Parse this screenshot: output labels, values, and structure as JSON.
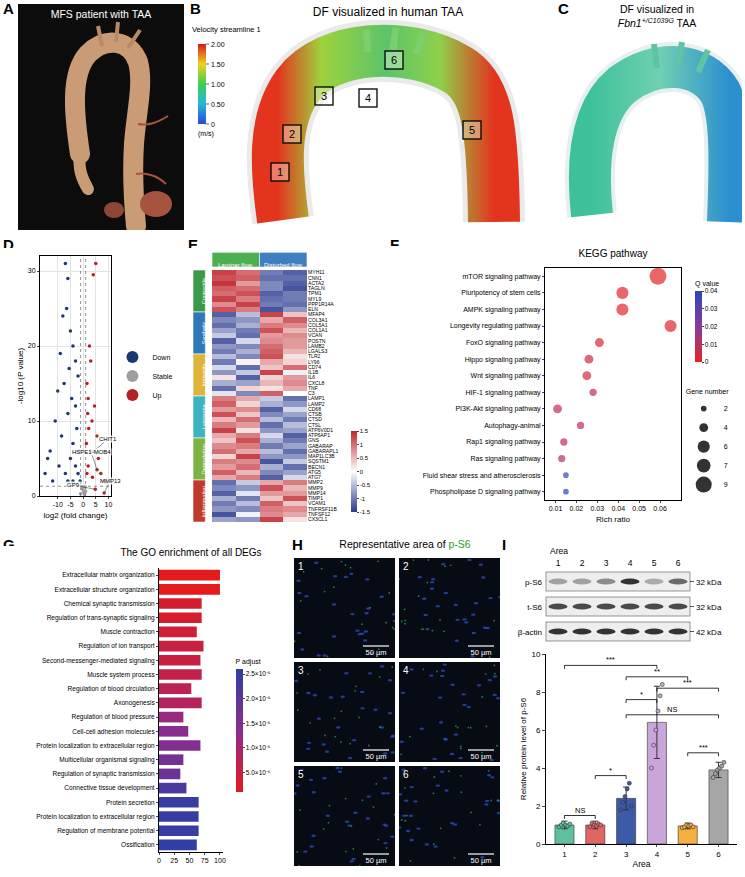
{
  "figure_panels": {
    "A": {
      "panel": "A",
      "title": "MFS patient with TAA"
    },
    "B": {
      "panel": "B",
      "title": "DF visualized in human TAA",
      "boxes": [
        "1",
        "2",
        "3",
        "4",
        "5",
        "6"
      ],
      "colorbar": {
        "title": "Velocity streamline 1",
        "range": [
          0,
          2
        ],
        "ticks": [
          0,
          {
            "value": 0.5,
            "label": "0.50"
          },
          {
            "value": 1,
            "label": "1.00"
          },
          {
            "value": 1.5,
            "label": "1.50"
          },
          {
            "value": 2,
            "label": "2.00"
          }
        ],
        "unit": "(m/s)"
      }
    },
    "C": {
      "panel": "C",
      "title_prefix": "DF visualized in ",
      "title_gene": "Fbn1",
      "title_sup": "+/C1039G",
      "title_suffix": " TAA"
    },
    "H": {
      "panel": "H",
      "title": "Representative area of p-S6",
      "highlight": "p-S6",
      "images": [
        "1",
        "2",
        "3",
        "4",
        "5",
        "6"
      ],
      "scale_bar": "50 µm"
    },
    "I_blot": {
      "panel": "I",
      "header": "Area",
      "lanes": [
        "1",
        "2",
        "3",
        "4",
        "5",
        "6"
      ],
      "rows": [
        {
          "name": "p-S6",
          "size": "32 kDa",
          "intensity": [
            0.35,
            0.35,
            0.45,
            0.85,
            0.3,
            0.6
          ]
        },
        {
          "name": "t-S6",
          "size": "32 kDa",
          "intensity": [
            0.75,
            0.75,
            0.75,
            0.75,
            0.75,
            0.75
          ]
        },
        {
          "name": "β-actin",
          "size": "42 kDa",
          "intensity": [
            0.85,
            0.85,
            0.85,
            0.85,
            0.85,
            0.85
          ]
        }
      ]
    }
  },
  "chart_data": [
    {
      "panel": "D",
      "type": "scatter",
      "xlabel": "log2 (fold change)",
      "ylabel": "-log10 (P value)",
      "xlim": [
        -17,
        11
      ],
      "xticks": [
        -10,
        -5,
        0,
        5,
        10
      ],
      "ylim": [
        0,
        32
      ],
      "yticks": [
        0,
        10,
        20,
        30
      ],
      "grid": true,
      "legend": "right",
      "thresholds": {
        "x": [
          -1,
          1
        ],
        "y": [
          1.3
        ]
      },
      "series": [
        {
          "name": "Down",
          "color": "#1b3b6f",
          "x": [
            -7,
            -6,
            -6.5,
            -8,
            -5,
            -4,
            -9,
            -3,
            -5.5,
            -2,
            -7.5,
            -10,
            -4.5,
            -3,
            -6,
            -11,
            -2.5,
            -8.5,
            -4,
            -13,
            -1.5,
            -5,
            -3,
            -9.5,
            -15,
            -7,
            -2,
            -12,
            -6,
            -4,
            -1.2,
            -14
          ],
          "values": [
            31,
            29,
            25,
            24,
            22,
            20,
            19,
            18,
            17,
            16,
            15,
            14,
            13,
            12,
            11,
            10,
            9,
            8,
            7,
            6,
            6,
            5,
            4,
            4,
            3,
            3,
            3,
            2,
            2,
            2,
            2,
            5
          ]
        },
        {
          "name": "Stable",
          "color": "#9e9e9e",
          "x": [
            -0.5,
            0.2,
            0.8,
            -1,
            0.5,
            0,
            -0.8,
            1
          ],
          "values": [
            1,
            0.5,
            1.2,
            0.3,
            0.2,
            0.8,
            1.3,
            0.6
          ]
        },
        {
          "name": "Up",
          "color": "#b22222",
          "x": [
            4,
            5,
            2.5,
            3,
            1.5,
            2,
            4.5,
            1.8,
            3.5,
            2.2,
            5.5,
            1.3,
            3,
            6,
            2,
            7,
            8,
            1.5,
            3.7,
            9,
            4.3,
            5.5,
            4.8,
            8.3
          ],
          "values": [
            29.5,
            31,
            20,
            18,
            15,
            13,
            12,
            11,
            10,
            9,
            8,
            7,
            6,
            5,
            4,
            3,
            2,
            3,
            2.5,
            1.8,
            6,
            3.5,
            0.9,
            0.4
          ]
        }
      ],
      "annotations": [
        {
          "text": "CHIT1",
          "x": 4.3,
          "y": 6
        },
        {
          "text": "HSPE1-MOB4",
          "x": 5.5,
          "y": 3.5
        },
        {
          "text": "GP9",
          "x": 4.8,
          "y": 0.9
        },
        {
          "text": "MMP13",
          "x": 8.3,
          "y": 0.4
        }
      ]
    },
    {
      "panel": "E",
      "type": "heatmap",
      "clim": [
        -1.5,
        1.5
      ],
      "cticks": [
        -1.5,
        -1,
        -0.5,
        0,
        0.5,
        1,
        1.5
      ],
      "column_groups": [
        {
          "name": "Laminar flow",
          "color": "#4caf50",
          "columns": 2
        },
        {
          "name": "Disturbed flow",
          "color": "#3f7fbf",
          "columns": 2
        }
      ],
      "row_groups": [
        {
          "name": "Contractile",
          "color": "#3a9a4a",
          "genes": [
            "MYH11",
            "CNN1",
            "ACTA2",
            "TAGLN",
            "TPM1",
            "MYL9",
            "PPP1R14A",
            "ELN"
          ],
          "cells": [
            [
              1.3,
              1.0,
              -1.0,
              -1.2
            ],
            [
              1.2,
              1.1,
              -1.1,
              -1.1
            ],
            [
              1.4,
              0.7,
              -0.9,
              -1.2
            ],
            [
              1.1,
              1.0,
              -0.9,
              -1.3
            ],
            [
              1.0,
              1.2,
              -1.2,
              -1.0
            ],
            [
              1.3,
              0.9,
              -1.1,
              -1.0
            ],
            [
              0.8,
              1.3,
              -1.0,
              -1.1
            ],
            [
              1.2,
              0.9,
              -1.3,
              -0.8
            ]
          ]
        },
        {
          "name": "Synthetic",
          "color": "#2f78b7",
          "genes": [
            "MFAP4",
            "COL3A1",
            "COL5A1",
            "COL1A1",
            "VCAN",
            "POSTN",
            "LAMB2",
            "LGALS3"
          ],
          "cells": [
            [
              -1.2,
              -0.5,
              1.3,
              0.4
            ],
            [
              -0.9,
              -0.8,
              0.6,
              1.1
            ],
            [
              -1.1,
              -0.6,
              0.9,
              0.8
            ],
            [
              -0.7,
              -1.0,
              1.2,
              0.5
            ],
            [
              -0.4,
              -1.1,
              0.7,
              0.8
            ],
            [
              -1.2,
              -0.3,
              0.8,
              0.7
            ],
            [
              -0.8,
              -0.9,
              1.0,
              0.7
            ],
            [
              -1.0,
              -0.6,
              1.1,
              0.5
            ]
          ]
        },
        {
          "name": "Immunity",
          "color": "#e0b43a",
          "genes": [
            "TLR2",
            "LY96",
            "CD74",
            "IL1B",
            "IL6",
            "CXCL8",
            "TNF",
            "C3"
          ],
          "cells": [
            [
              -0.5,
              -0.9,
              1.2,
              0.2
            ],
            [
              -1.0,
              0.1,
              0.6,
              0.3
            ],
            [
              -0.3,
              -1.1,
              0.4,
              1.0
            ],
            [
              -0.8,
              -0.4,
              1.3,
              -0.1
            ],
            [
              0.2,
              -1.2,
              0.3,
              0.7
            ],
            [
              -0.6,
              -0.7,
              0.5,
              0.8
            ],
            [
              -1.1,
              0.3,
              0.2,
              0.6
            ],
            [
              -0.2,
              -0.9,
              1.1,
              0.0
            ]
          ]
        },
        {
          "name": "Lysosome",
          "color": "#3bb3c3",
          "genes": [
            "LAMP1",
            "LAMP2",
            "CD68",
            "CTSB",
            "CTSD",
            "CTSL",
            "ATP6V0D1",
            "ATP6AP1"
          ],
          "cells": [
            [
              0.9,
              0.6,
              -0.4,
              -1.1
            ],
            [
              1.1,
              0.3,
              -0.6,
              -0.8
            ],
            [
              0.7,
              0.8,
              -1.2,
              -0.3
            ],
            [
              1.2,
              0.4,
              -0.9,
              -0.7
            ],
            [
              0.5,
              1.0,
              -0.5,
              -1.0
            ],
            [
              0.9,
              0.7,
              -1.1,
              -0.5
            ],
            [
              1.3,
              0.2,
              -0.8,
              -0.7
            ],
            [
              0.6,
              0.9,
              -0.3,
              -1.2
            ]
          ]
        },
        {
          "name": "Degradation",
          "color": "#7cb342",
          "genes": [
            "GNS",
            "GABARAP",
            "GABARAPL1",
            "MAP1LC3B",
            "SQSTM1",
            "BECN1",
            "ATG5",
            "ATG7"
          ],
          "cells": [
            [
              0.4,
              1.2,
              -0.6,
              -1.0
            ],
            [
              0.8,
              0.9,
              -1.0,
              -0.7
            ],
            [
              1.0,
              0.6,
              -0.5,
              -1.1
            ],
            [
              0.3,
              1.3,
              -0.8,
              -0.8
            ],
            [
              0.9,
              0.8,
              -1.3,
              -0.4
            ],
            [
              0.7,
              1.0,
              -0.6,
              -1.1
            ],
            [
              1.1,
              0.5,
              -0.9,
              -0.7
            ],
            [
              0.6,
              0.9,
              -1.2,
              -0.3
            ]
          ]
        },
        {
          "name": "Inflammation",
          "color": "#c0392b",
          "genes": [
            "MMP2",
            "MMP9",
            "MMP14",
            "TIMP1",
            "VCAM1",
            "TNFRSF11B",
            "TNFSF12",
            "CX3CL1"
          ],
          "cells": [
            [
              -1.1,
              -0.4,
              0.6,
              0.9
            ],
            [
              -0.9,
              -0.8,
              1.2,
              0.5
            ],
            [
              -1.2,
              -0.2,
              0.7,
              0.7
            ],
            [
              -0.6,
              -1.0,
              0.4,
              1.2
            ],
            [
              -1.0,
              -0.5,
              1.1,
              0.4
            ],
            [
              -0.8,
              -0.9,
              0.9,
              0.8
            ],
            [
              -1.3,
              -0.1,
              0.8,
              0.6
            ],
            [
              -0.7,
              -0.8,
              1.3,
              0.2
            ]
          ]
        }
      ]
    },
    {
      "panel": "F",
      "type": "scatter",
      "title": "KEGG pathway",
      "xlabel": "Rich ratio",
      "legend": "bottom right",
      "categories": [
        "mTOR signaling pathway",
        "Pluripotency of stem cells",
        "AMPK signaling pathway",
        "Longevity regulating pathway",
        "FoxO signaling pathway",
        "Hippo signaling pathway",
        "Wnt signaling pathway",
        "HIF-1 signaling pathway",
        "PI3K-Akt signaling pathway",
        "Autophagy-animal",
        "Rap1 signaling pathway",
        "Ras signaling pathway",
        "Fluid shear stress and atherosclerosis",
        "Phospholipase D signaling pathway"
      ],
      "values": [
        0.059,
        0.042,
        0.042,
        0.065,
        0.031,
        0.026,
        0.025,
        0.028,
        0.011,
        0.022,
        0.014,
        0.013,
        0.015,
        0.015
      ],
      "gene_number": [
        9,
        6,
        6,
        6,
        4,
        4,
        4,
        3,
        4,
        3,
        3,
        3,
        2,
        2
      ],
      "q_value": [
        0.001,
        0.002,
        0.002,
        0.002,
        0.004,
        0.005,
        0.005,
        0.008,
        0.009,
        0.009,
        0.01,
        0.012,
        0.038,
        0.04
      ],
      "xlim": [
        0.005,
        0.07
      ],
      "xticks": [
        0.01,
        0.02,
        0.03,
        0.04,
        0.05,
        0.06
      ],
      "color_title": "Q value",
      "clim": [
        0,
        0.04
      ],
      "cticks": [
        0,
        0.01,
        0.02,
        0.03,
        0.04
      ],
      "size_title": "Gene number",
      "size_legend": [
        2,
        4,
        6,
        7,
        9
      ]
    },
    {
      "panel": "G",
      "type": "bar",
      "orientation": "horizontal",
      "title": "The GO enrichment of all DEGs",
      "categories": [
        "Extracellular matrix organization",
        "Extracellular structure organization",
        "Chemical synaptic transmission",
        "Regulation of trans-synaptic signaling",
        "Muscle contraction",
        "Regulation of ion transport",
        "Second-messenger-mediated signaling",
        "Muscle system process",
        "Regulation of blood circulation",
        "Axonogenesis",
        "Regulation of blood pressure",
        "Cell-cell adhesion molecules",
        "Protein localization to extracellular region",
        "Multicellular organismal signaling",
        "Regulation of synaptic transmission",
        "Connective tissue development",
        "Protein secretion",
        "Protein localization to extracellular region",
        "Regulation of membrane potential",
        "Ossification"
      ],
      "values": [
        100,
        100,
        70,
        70,
        62,
        73,
        68,
        70,
        53,
        70,
        40,
        48,
        68,
        40,
        35,
        45,
        65,
        65,
        65,
        62
      ],
      "p_adjust": [
        1e-06,
        1e-06,
        3e-06,
        3e-06,
        4e-06,
        5e-06,
        5e-06,
        6e-06,
        7e-06,
        8e-06,
        1.2e-05,
        1.4e-05,
        1.5e-05,
        1.7e-05,
        1.8e-05,
        2.2e-05,
        2.5e-05,
        2.5e-05,
        2.5e-05,
        2.6e-05
      ],
      "xlim": [
        0,
        105
      ],
      "xticks": [
        0,
        25,
        50,
        75,
        100
      ],
      "color_title": "P adjust",
      "clim": [
        1e-06,
        2.6e-05
      ],
      "cticks": [
        {
          "value": 5e-06,
          "label": "5.0×10⁻⁶"
        },
        {
          "value": 1e-05,
          "label": "1.0×10⁻⁵"
        },
        {
          "value": 1.5e-05,
          "label": "1.5×10⁻⁵"
        },
        {
          "value": 2e-05,
          "label": "2.0×10⁻⁵"
        },
        {
          "value": 2.5e-05,
          "label": "2.5×10⁻⁵"
        }
      ]
    },
    {
      "panel": "I",
      "type": "bar",
      "xlabel": "Area",
      "ylabel": "Relative protein level of p-S6",
      "categories": [
        "1",
        "2",
        "3",
        "4",
        "5",
        "6"
      ],
      "values": [
        1.0,
        1.0,
        2.4,
        6.4,
        0.95,
        3.9
      ],
      "errors": [
        0.2,
        0.2,
        0.6,
        1.9,
        0.15,
        0.4
      ],
      "colors": [
        "#5fbf9f",
        "#e06666",
        "#3d5aa8",
        "#c9a6d9",
        "#f5b041",
        "#a6a6a6"
      ],
      "points": [
        [
          0.9,
          1.0,
          1.1,
          1.0,
          0.95,
          1.05
        ],
        [
          0.9,
          1.1,
          1.0,
          0.95,
          1.05,
          1.0
        ],
        [
          1.8,
          2.2,
          2.5,
          2.9,
          3.2,
          2.0
        ],
        [
          4.0,
          5.2,
          6.0,
          7.0,
          7.8,
          8.4
        ],
        [
          0.85,
          0.9,
          1.0,
          0.95,
          1.0,
          0.9
        ],
        [
          3.5,
          3.7,
          3.9,
          4.0,
          4.1,
          4.3
        ]
      ],
      "ylim": [
        0,
        10
      ],
      "yticks": [
        0,
        2,
        4,
        6,
        8,
        10
      ],
      "comparisons": [
        {
          "from": "1",
          "to": "2",
          "y": 1.5,
          "label": "NS"
        },
        {
          "from": "2",
          "to": "3",
          "y": 3.6,
          "label": "*"
        },
        {
          "from": "5",
          "to": "6",
          "y": 4.8,
          "label": "***"
        },
        {
          "from": "3",
          "to": "6",
          "y": 6.8,
          "label": "NS"
        },
        {
          "from": "3",
          "to": "4",
          "y": 7.6,
          "label": "*"
        },
        {
          "from": "4",
          "to": "6",
          "y": 8.2,
          "label": "***"
        },
        {
          "from": "3",
          "to": "5",
          "y": 8.8,
          "label": "**"
        },
        {
          "from": "1",
          "to": "4",
          "y": 9.4,
          "label": "***"
        }
      ]
    }
  ]
}
